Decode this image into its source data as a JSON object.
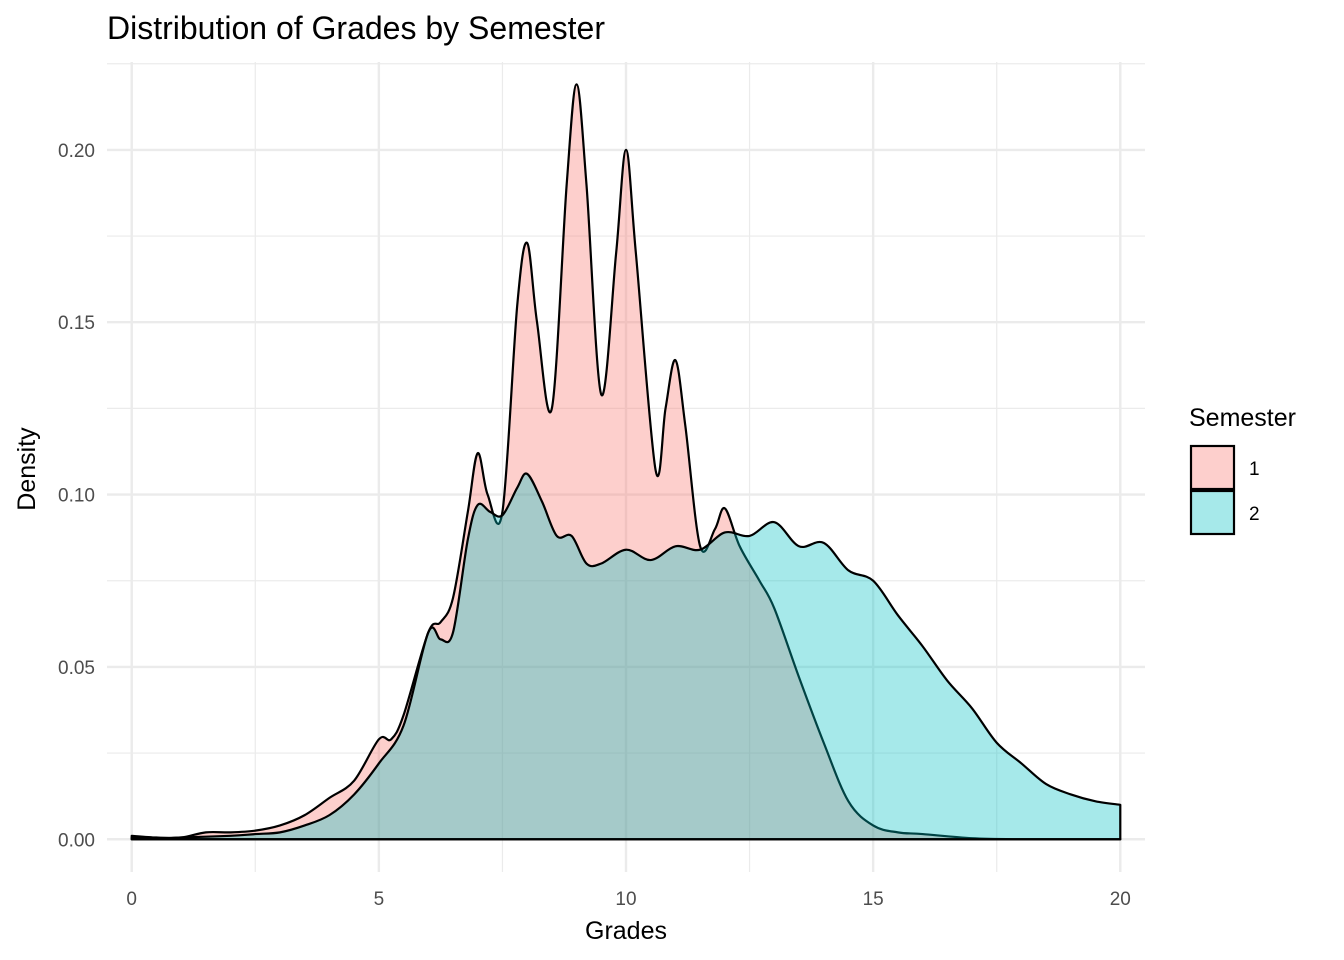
{
  "chart_data": {
    "type": "area",
    "subtype": "density",
    "title": "Distribution of Grades by Semester",
    "xlabel": "Grades",
    "ylabel": "Density",
    "xlim": [
      -0.5,
      20.5
    ],
    "ylim": [
      -0.0095,
      0.2255
    ],
    "x_ticks": [
      0,
      5,
      10,
      15,
      20
    ],
    "x_tick_labels": [
      "0",
      "5",
      "10",
      "15",
      "20"
    ],
    "y_ticks": [
      0,
      0.05,
      0.1,
      0.15,
      0.2
    ],
    "y_tick_labels": [
      "0.00",
      "0.05",
      "0.10",
      "0.15",
      "0.20"
    ],
    "grid": true,
    "legend": {
      "title": "Semester",
      "position": "right"
    },
    "series": [
      {
        "name": "1",
        "fill": "#F8766D",
        "points": [
          [
            0,
            0.001
          ],
          [
            0.5,
            0.0005
          ],
          [
            1,
            0.0005
          ],
          [
            1.5,
            0.002
          ],
          [
            2,
            0.002
          ],
          [
            2.5,
            0.0025
          ],
          [
            3,
            0.004
          ],
          [
            3.5,
            0.007
          ],
          [
            4,
            0.012
          ],
          [
            4.5,
            0.017
          ],
          [
            5,
            0.029
          ],
          [
            5.25,
            0.029
          ],
          [
            5.5,
            0.036
          ],
          [
            6,
            0.06
          ],
          [
            6.25,
            0.063
          ],
          [
            6.5,
            0.07
          ],
          [
            6.8,
            0.095
          ],
          [
            7,
            0.112
          ],
          [
            7.2,
            0.1
          ],
          [
            7.5,
            0.095
          ],
          [
            7.8,
            0.155
          ],
          [
            8,
            0.173
          ],
          [
            8.2,
            0.15
          ],
          [
            8.5,
            0.125
          ],
          [
            8.8,
            0.19
          ],
          [
            9,
            0.219
          ],
          [
            9.2,
            0.19
          ],
          [
            9.5,
            0.129
          ],
          [
            9.8,
            0.17
          ],
          [
            10,
            0.2
          ],
          [
            10.2,
            0.17
          ],
          [
            10.6,
            0.107
          ],
          [
            10.8,
            0.125
          ],
          [
            11,
            0.139
          ],
          [
            11.2,
            0.12
          ],
          [
            11.5,
            0.085
          ],
          [
            11.8,
            0.09
          ],
          [
            12,
            0.096
          ],
          [
            12.3,
            0.085
          ],
          [
            12.7,
            0.075
          ],
          [
            13,
            0.067
          ],
          [
            13.5,
            0.047
          ],
          [
            14,
            0.028
          ],
          [
            14.5,
            0.011
          ],
          [
            15,
            0.004
          ],
          [
            15.5,
            0.002
          ],
          [
            16,
            0.0015
          ],
          [
            17,
            0.0003
          ],
          [
            18,
            0
          ],
          [
            19,
            0
          ],
          [
            20,
            0
          ]
        ]
      },
      {
        "name": "2",
        "fill": "#00BFC4",
        "points": [
          [
            0,
            0.0005
          ],
          [
            0.5,
            0.0002
          ],
          [
            1,
            0.0005
          ],
          [
            2,
            0.001
          ],
          [
            2.5,
            0.0015
          ],
          [
            3,
            0.002
          ],
          [
            3.5,
            0.004
          ],
          [
            4,
            0.007
          ],
          [
            4.5,
            0.013
          ],
          [
            5,
            0.022
          ],
          [
            5.5,
            0.033
          ],
          [
            6,
            0.06
          ],
          [
            6.25,
            0.058
          ],
          [
            6.5,
            0.06
          ],
          [
            6.8,
            0.087
          ],
          [
            7,
            0.097
          ],
          [
            7.25,
            0.095
          ],
          [
            7.5,
            0.094
          ],
          [
            7.8,
            0.102
          ],
          [
            8,
            0.106
          ],
          [
            8.3,
            0.098
          ],
          [
            8.6,
            0.088
          ],
          [
            8.9,
            0.088
          ],
          [
            9.2,
            0.08
          ],
          [
            9.5,
            0.08
          ],
          [
            10,
            0.084
          ],
          [
            10.5,
            0.081
          ],
          [
            11,
            0.085
          ],
          [
            11.5,
            0.084
          ],
          [
            12,
            0.089
          ],
          [
            12.5,
            0.088
          ],
          [
            13,
            0.092
          ],
          [
            13.5,
            0.085
          ],
          [
            14,
            0.086
          ],
          [
            14.5,
            0.078
          ],
          [
            15,
            0.075
          ],
          [
            15.5,
            0.065
          ],
          [
            16,
            0.056
          ],
          [
            16.5,
            0.046
          ],
          [
            17,
            0.038
          ],
          [
            17.5,
            0.028
          ],
          [
            18,
            0.022
          ],
          [
            18.5,
            0.016
          ],
          [
            19,
            0.013
          ],
          [
            19.5,
            0.011
          ],
          [
            20,
            0.01
          ]
        ]
      }
    ]
  }
}
